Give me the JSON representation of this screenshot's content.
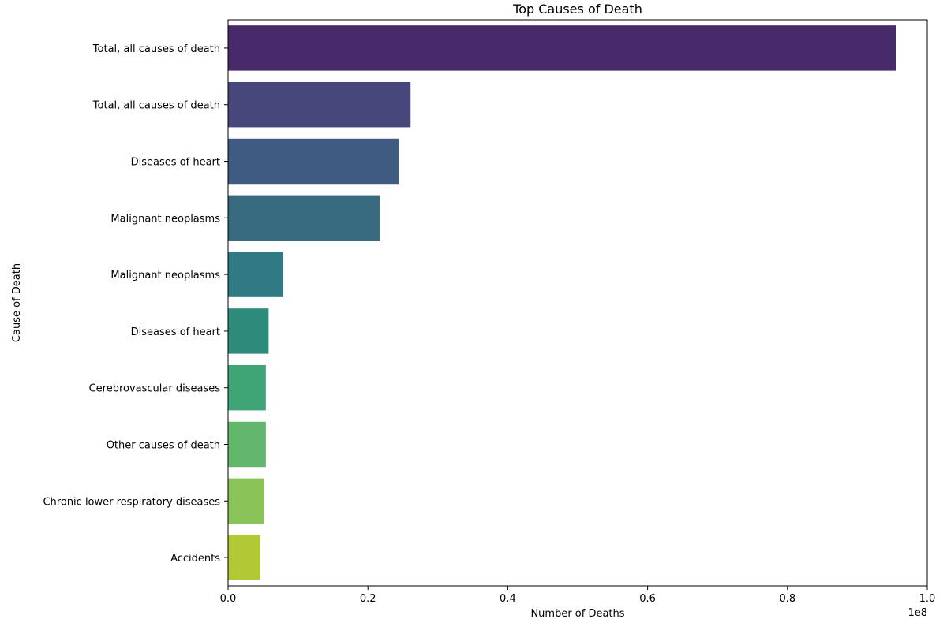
{
  "chart_data": {
    "type": "bar",
    "orientation": "horizontal",
    "title": "Top Causes of Death",
    "xlabel": "Number of Deaths",
    "ylabel": "Cause of Death",
    "x_offset_label": "1e8",
    "xlim": [
      0,
      1.0
    ],
    "x_ticks": [
      "0.0",
      "0.2",
      "0.4",
      "0.6",
      "0.8",
      "1.0"
    ],
    "grid": false,
    "categories": [
      "Total, all causes of death ",
      "Total, all causes of death",
      "Diseases of heart ",
      "Malignant neoplasms ",
      "Malignant neoplasms",
      "Diseases of heart",
      "Cerebrovascular diseases ",
      "Other causes of death",
      "Chronic lower respiratory diseases ",
      "Accidents "
    ],
    "values": [
      0.955,
      0.261,
      0.244,
      0.217,
      0.079,
      0.058,
      0.054,
      0.054,
      0.051,
      0.046
    ],
    "colors": [
      "#482a6a",
      "#47477c",
      "#405b81",
      "#396b80",
      "#2f7a83",
      "#2e8b7c",
      "#3fa476",
      "#62b76d",
      "#8ac459",
      "#b2c935"
    ]
  }
}
